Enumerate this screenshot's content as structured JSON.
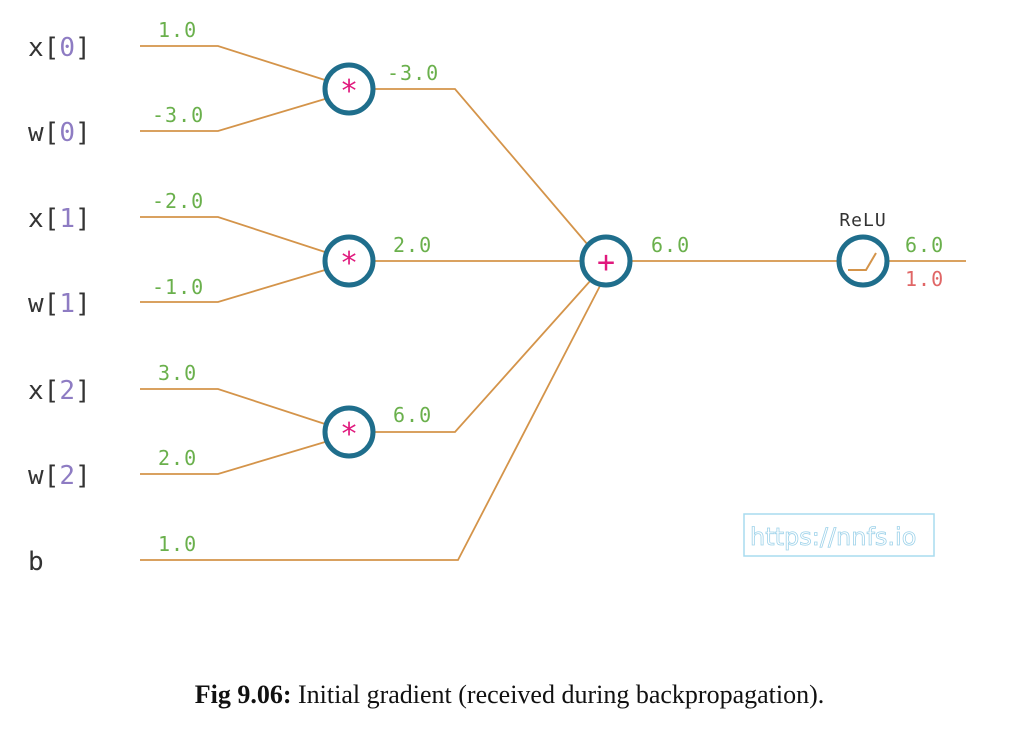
{
  "diagram": {
    "inputs": [
      {
        "name": "x",
        "index": "0",
        "value": "1.0"
      },
      {
        "name": "w",
        "index": "0",
        "value": "-3.0"
      },
      {
        "name": "x",
        "index": "1",
        "value": "-2.0"
      },
      {
        "name": "w",
        "index": "1",
        "value": "-1.0"
      },
      {
        "name": "x",
        "index": "2",
        "value": "3.0"
      },
      {
        "name": "w",
        "index": "2",
        "value": "2.0"
      },
      {
        "name": "b",
        "index": "",
        "value": "1.0"
      }
    ],
    "multiply_nodes": [
      {
        "op": "*",
        "output": "-3.0"
      },
      {
        "op": "*",
        "output": "2.0"
      },
      {
        "op": "*",
        "output": "6.0"
      }
    ],
    "sum_node": {
      "op": "+",
      "output": "6.0"
    },
    "relu_node": {
      "label": "ReLU",
      "output": "6.0",
      "gradient": "1.0"
    },
    "watermark": "https://nnfs.io"
  },
  "caption": {
    "label": "Fig 9.06:",
    "text": " Initial gradient (received during backpropagation)."
  },
  "colors": {
    "wire": "#d4944a",
    "node_ring": "#1f6e8c",
    "operator": "#e0197d",
    "value": "#6ab04c",
    "gradient": "#e06666",
    "index": "#8e7cc3"
  }
}
